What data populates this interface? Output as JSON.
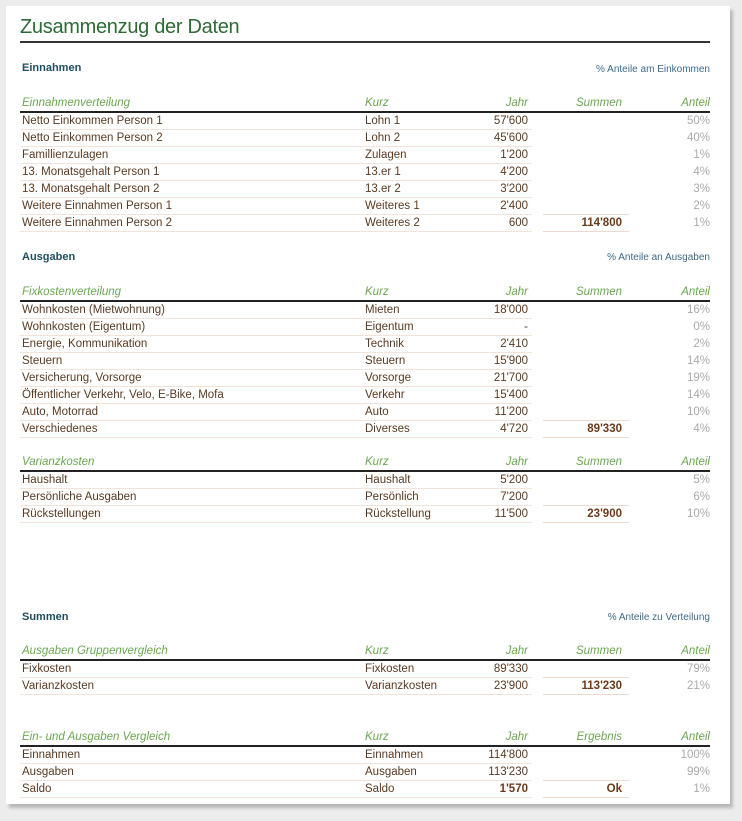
{
  "title": "Zusammenzug der Daten",
  "sections": [
    {
      "heading": "Einnahmen",
      "note": "% Anteile am Einkommen",
      "tables": [
        {
          "header": [
            "Einnahmenverteilung",
            "Kurz",
            "Jahr",
            "Summen",
            "Anteil"
          ],
          "rows": [
            [
              "Netto Einkommen Person 1",
              "Lohn 1",
              "57'600",
              "",
              "50%"
            ],
            [
              "Netto Einkommen Person 2",
              "Lohn 2",
              "45'600",
              "",
              "40%"
            ],
            [
              "Famillienzulagen",
              "Zulagen",
              "1'200",
              "",
              "1%"
            ],
            [
              "13. Monatsgehalt Person 1",
              "13.er 1",
              "4'200",
              "",
              "4%"
            ],
            [
              "13. Monatsgehalt Person 2",
              "13.er 2",
              "3'200",
              "",
              "3%"
            ],
            [
              "Weitere Einnahmen Person 1",
              "Weiteres 1",
              "2'400",
              "",
              "2%"
            ],
            [
              "Weitere Einnahmen Person 2",
              "Weiteres 2",
              "600",
              "114'800",
              "1%"
            ]
          ]
        }
      ]
    },
    {
      "heading": "Ausgaben",
      "note": "% Anteile an Ausgaben",
      "tables": [
        {
          "header": [
            "Fixkostenverteilung",
            "Kurz",
            "Jahr",
            "Summen",
            "Anteil"
          ],
          "rows": [
            [
              "Wohnkosten (Mietwohnung)",
              "Mieten",
              "18'000",
              "",
              "16%"
            ],
            [
              "Wohnkosten (Eigentum)",
              "Eigentum",
              "-",
              "",
              "0%"
            ],
            [
              "Energie, Kommunikation",
              "Technik",
              "2'410",
              "",
              "2%"
            ],
            [
              "Steuern",
              "Steuern",
              "15'900",
              "",
              "14%"
            ],
            [
              "Versicherung, Vorsorge",
              "Vorsorge",
              "21'700",
              "",
              "19%"
            ],
            [
              "Öffentlicher Verkehr, Velo, E-Bike, Mofa",
              "Verkehr",
              "15'400",
              "",
              "14%"
            ],
            [
              "Auto, Motorrad",
              "Auto",
              "11'200",
              "",
              "10%"
            ],
            [
              "Verschiedenes",
              "Diverses",
              "4'720",
              "89'330",
              "4%"
            ]
          ]
        },
        {
          "header": [
            "Varianzkosten",
            "Kurz",
            "Jahr",
            "Summen",
            "Anteil"
          ],
          "rows": [
            [
              "Haushalt",
              "Haushalt",
              "5'200",
              "",
              "5%"
            ],
            [
              "Persönliche Ausgaben",
              "Persönlich",
              "7'200",
              "",
              "6%"
            ],
            [
              "Rückstellungen",
              "Rückstellung",
              "11'500",
              "23'900",
              "10%"
            ]
          ]
        }
      ]
    },
    {
      "heading": "Summen",
      "note": "% Anteile zu Verteilung",
      "tables": [
        {
          "header": [
            "Ausgaben Gruppenvergleich",
            "Kurz",
            "Jahr",
            "Summen",
            "Anteil"
          ],
          "rows": [
            [
              "Fixkosten",
              "Fixkosten",
              "89'330",
              "",
              "79%"
            ],
            [
              "Varianzkosten",
              "Varianzkosten",
              "23'900",
              "113'230",
              "21%"
            ]
          ]
        },
        {
          "header": [
            "Ein- und Ausgaben Vergleich",
            "Kurz",
            "Jahr",
            "Ergebnis",
            "Anteil"
          ],
          "rows": [
            [
              "Einnahmen",
              "Einnahmen",
              "114'800",
              "",
              "100%"
            ],
            [
              "Ausgaben",
              "Ausgaben",
              "113'230",
              "",
              "99%"
            ],
            [
              "Saldo",
              "Saldo",
              "1'570",
              "Ok",
              "1%"
            ]
          ],
          "bold_jahr_last_row": true
        }
      ]
    }
  ]
}
